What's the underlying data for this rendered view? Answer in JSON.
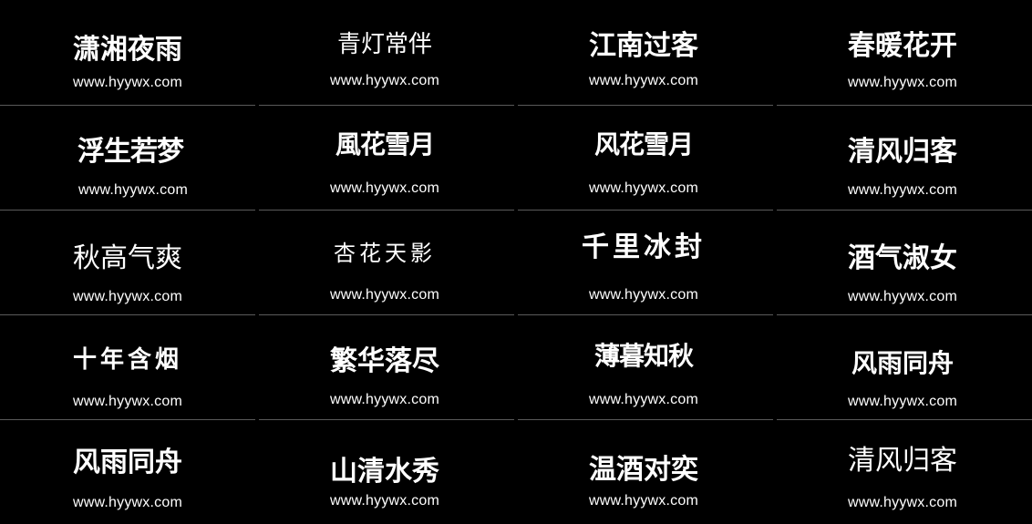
{
  "cells": [
    {
      "title": "潇湘夜雨",
      "url": "www.hyywx.com"
    },
    {
      "title": "青灯常伴",
      "url": "www.hyywx.com"
    },
    {
      "title": "江南过客",
      "url": "www.hyywx.com"
    },
    {
      "title": "春暖花开",
      "url": "www.hyywx.com"
    },
    {
      "title": "浮生若梦",
      "url": "www.hyywx.com"
    },
    {
      "title": "風花雪月",
      "url": "www.hyywx.com"
    },
    {
      "title": "风花雪月",
      "url": "www.hyywx.com"
    },
    {
      "title": "清风归客",
      "url": "www.hyywx.com"
    },
    {
      "title": "秋高气爽",
      "url": "www.hyywx.com"
    },
    {
      "title": "杏花天影",
      "url": "www.hyywx.com"
    },
    {
      "title": "千里冰封",
      "url": "www.hyywx.com"
    },
    {
      "title": "酒气淑女",
      "url": "www.hyywx.com"
    },
    {
      "title": "十年含烟",
      "url": "www.hyywx.com"
    },
    {
      "title": "繁华落尽",
      "url": "www.hyywx.com"
    },
    {
      "title": "薄暮知秋",
      "url": "www.hyywx.com"
    },
    {
      "title": "风雨同舟",
      "url": "www.hyywx.com"
    },
    {
      "title": "风雨同舟",
      "url": "www.hyywx.com"
    },
    {
      "title": "山清水秀",
      "url": "www.hyywx.com"
    },
    {
      "title": "温酒对奕",
      "url": "www.hyywx.com"
    },
    {
      "title": "清风归客",
      "url": "www.hyywx.com"
    }
  ],
  "colors": {
    "background": "#000000",
    "text": "#ffffff",
    "separator": "#5a5a5a"
  }
}
